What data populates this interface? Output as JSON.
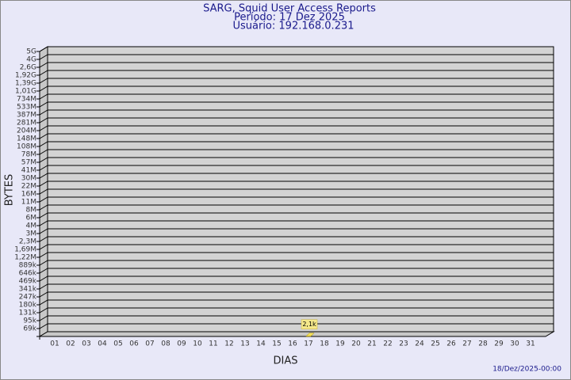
{
  "chart_data": {
    "type": "bar",
    "title": "SARG, Squid User Access Reports",
    "subtitle": "Período: 17 Dez 2025",
    "user_line": "Usuário: 192.168.0.231",
    "x_label": "DIAS",
    "y_label": "BYTES",
    "footer": "18/Dez/2025-00:00",
    "categories": [
      "01",
      "02",
      "03",
      "04",
      "05",
      "06",
      "07",
      "08",
      "09",
      "10",
      "11",
      "12",
      "13",
      "14",
      "15",
      "16",
      "17",
      "18",
      "19",
      "20",
      "21",
      "22",
      "23",
      "24",
      "25",
      "26",
      "27",
      "28",
      "29",
      "30",
      "31"
    ],
    "values": [
      null,
      null,
      null,
      null,
      null,
      null,
      null,
      null,
      null,
      null,
      null,
      null,
      null,
      null,
      null,
      null,
      2100,
      null,
      null,
      null,
      null,
      null,
      null,
      null,
      null,
      null,
      null,
      null,
      null,
      null,
      null
    ],
    "value_labels": [
      null,
      null,
      null,
      null,
      null,
      null,
      null,
      null,
      null,
      null,
      null,
      null,
      null,
      null,
      null,
      null,
      "2,1k",
      null,
      null,
      null,
      null,
      null,
      null,
      null,
      null,
      null,
      null,
      null,
      null,
      null,
      null
    ],
    "color": "#f5e05a",
    "ylim": [
      0,
      5000000000
    ],
    "yticks": [
      {
        "value": 69000,
        "label": "69k"
      },
      {
        "value": 95000,
        "label": "95k"
      },
      {
        "value": 131000,
        "label": "131k"
      },
      {
        "value": 180000,
        "label": "180k"
      },
      {
        "value": 247000,
        "label": "247k"
      },
      {
        "value": 341000,
        "label": "341k"
      },
      {
        "value": 469000,
        "label": "469k"
      },
      {
        "value": 646000,
        "label": "646k"
      },
      {
        "value": 889000,
        "label": "889k"
      },
      {
        "value": 1220000,
        "label": "1,22M"
      },
      {
        "value": 1690000,
        "label": "1,69M"
      },
      {
        "value": 2300000,
        "label": "2,3M"
      },
      {
        "value": 3000000,
        "label": "3M"
      },
      {
        "value": 4000000,
        "label": "4M"
      },
      {
        "value": 6000000,
        "label": "6M"
      },
      {
        "value": 8000000,
        "label": "8M"
      },
      {
        "value": 11000000,
        "label": "11M"
      },
      {
        "value": 16000000,
        "label": "16M"
      },
      {
        "value": 22000000,
        "label": "22M"
      },
      {
        "value": 30000000,
        "label": "30M"
      },
      {
        "value": 41000000,
        "label": "41M"
      },
      {
        "value": 57000000,
        "label": "57M"
      },
      {
        "value": 78000000,
        "label": "78M"
      },
      {
        "value": 108000000,
        "label": "108M"
      },
      {
        "value": 148000000,
        "label": "148M"
      },
      {
        "value": 204000000,
        "label": "204M"
      },
      {
        "value": 281000000,
        "label": "281M"
      },
      {
        "value": 387000000,
        "label": "387M"
      },
      {
        "value": 533000000,
        "label": "533M"
      },
      {
        "value": 734000000,
        "label": "734M"
      },
      {
        "value": 1010000000,
        "label": "1,01G"
      },
      {
        "value": 1390000000,
        "label": "1,39G"
      },
      {
        "value": 1920000000,
        "label": "1,92G"
      },
      {
        "value": 2600000000,
        "label": "2,6G"
      },
      {
        "value": 4000000000,
        "label": "4G"
      },
      {
        "value": 5000000000,
        "label": "5G"
      }
    ],
    "grid": true
  }
}
